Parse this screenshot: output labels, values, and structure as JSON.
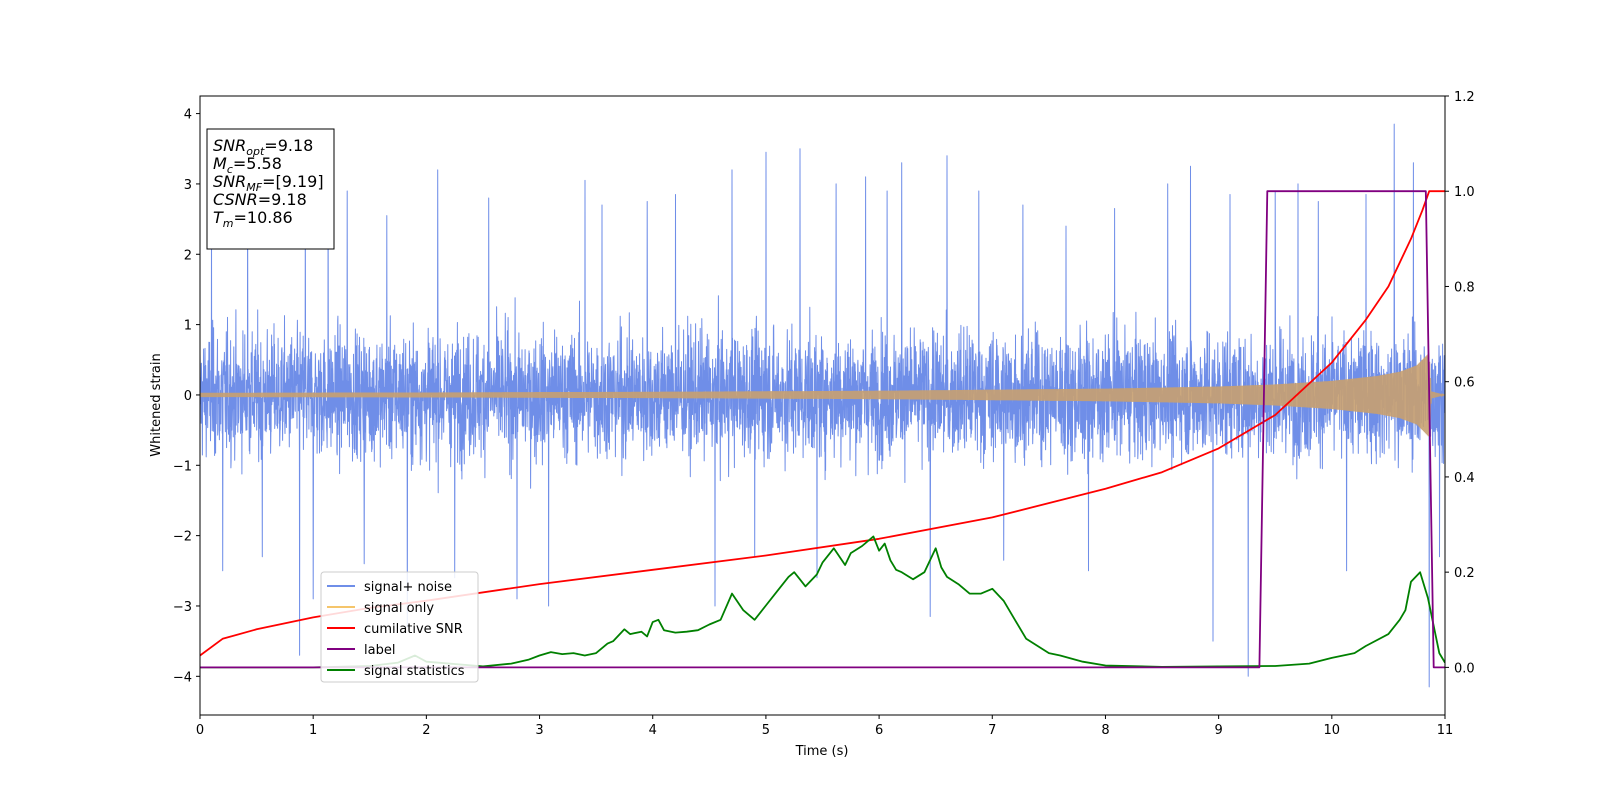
{
  "chart_data": {
    "type": "line",
    "title": "",
    "xlabel": "Time (s)",
    "ylabel": "Whitened strain",
    "xlim": [
      0,
      11
    ],
    "ylim": [
      -4.55,
      4.25
    ],
    "y2lim": [
      -0.1,
      1.2
    ],
    "x_ticks": [
      0,
      1,
      2,
      3,
      4,
      5,
      6,
      7,
      8,
      9,
      10,
      11
    ],
    "x_tick_labels": [
      "0",
      "1",
      "2",
      "3",
      "4",
      "5",
      "6",
      "7",
      "8",
      "9",
      "10",
      "11"
    ],
    "y_ticks": [
      -4,
      -3,
      -2,
      -1,
      0,
      1,
      2,
      3,
      4
    ],
    "y_tick_labels": [
      "−4",
      "−3",
      "−2",
      "−1",
      "0",
      "1",
      "2",
      "3",
      "4"
    ],
    "y2_ticks": [
      0.0,
      0.2,
      0.4,
      0.6,
      0.8,
      1.0,
      1.2
    ],
    "y2_tick_labels": [
      "0.0",
      "0.2",
      "0.4",
      "0.6",
      "0.8",
      "1.0",
      "1.2"
    ],
    "grid": false,
    "legend_position": "lower-left",
    "info_box": {
      "lines": [
        {
          "var": "SNR",
          "sub": "opt",
          "value": "=9.18"
        },
        {
          "var": "M",
          "sub": "c",
          "value": "=5.58"
        },
        {
          "var": "SNR",
          "sub": "MF",
          "value": "=[9.19]"
        },
        {
          "var": "CSNR",
          "sub": "",
          "value": "=9.18"
        },
        {
          "var": "T",
          "sub": "m",
          "value": "=10.86"
        }
      ]
    },
    "series": [
      {
        "name": "signal+ noise",
        "axis": "left",
        "color": "#6f8ee8",
        "description_values": "noise band approx -2.1 to 2.1, spikes up to 3.85",
        "envelope": {
          "x": [
            0,
            11
          ],
          "low": -1.6,
          "high": 1.6
        },
        "spikes": [
          [
            0.1,
            2.6
          ],
          [
            0.2,
            -2.5
          ],
          [
            0.42,
            2.9
          ],
          [
            0.55,
            -2.3
          ],
          [
            0.88,
            -3.7
          ],
          [
            0.93,
            2.7
          ],
          [
            1.0,
            -2.9
          ],
          [
            1.13,
            3.35
          ],
          [
            1.3,
            2.9
          ],
          [
            1.45,
            -2.4
          ],
          [
            1.65,
            2.55
          ],
          [
            1.83,
            -3.3
          ],
          [
            2.1,
            3.2
          ],
          [
            2.25,
            -2.6
          ],
          [
            2.55,
            2.8
          ],
          [
            2.8,
            -2.9
          ],
          [
            3.08,
            -3.0
          ],
          [
            3.4,
            3.05
          ],
          [
            3.55,
            2.7
          ],
          [
            3.95,
            2.75
          ],
          [
            4.2,
            2.85
          ],
          [
            4.55,
            -3.0
          ],
          [
            4.7,
            3.2
          ],
          [
            4.9,
            -2.3
          ],
          [
            5.0,
            3.45
          ],
          [
            5.3,
            3.5
          ],
          [
            5.45,
            -2.6
          ],
          [
            5.62,
            3.0
          ],
          [
            5.88,
            3.1
          ],
          [
            6.07,
            2.9
          ],
          [
            6.2,
            3.3
          ],
          [
            6.45,
            -3.15
          ],
          [
            6.6,
            3.4
          ],
          [
            6.88,
            2.9
          ],
          [
            7.1,
            -2.35
          ],
          [
            7.27,
            2.7
          ],
          [
            7.65,
            2.4
          ],
          [
            7.85,
            -2.5
          ],
          [
            8.08,
            2.65
          ],
          [
            8.55,
            3.0
          ],
          [
            8.75,
            3.25
          ],
          [
            8.95,
            -3.5
          ],
          [
            9.1,
            2.85
          ],
          [
            9.26,
            -4.0
          ],
          [
            9.5,
            2.9
          ],
          [
            9.7,
            3.0
          ],
          [
            9.88,
            2.75
          ],
          [
            10.13,
            -2.5
          ],
          [
            10.3,
            2.85
          ],
          [
            10.55,
            3.85
          ],
          [
            10.72,
            3.3
          ],
          [
            10.86,
            -4.15
          ],
          [
            10.95,
            -2.3
          ]
        ]
      },
      {
        "name": "signal only",
        "axis": "left",
        "color": "#f5c56b",
        "description_values": "chirp amplitude grows from ~0.03 to ~0.6 near merger at 10.86 s",
        "amplitude": {
          "x": [
            0,
            2,
            4,
            6,
            8,
            9,
            9.5,
            10,
            10.4,
            10.6,
            10.75,
            10.83,
            10.86,
            10.88,
            11
          ],
          "a": [
            0.03,
            0.035,
            0.045,
            0.06,
            0.09,
            0.12,
            0.15,
            0.2,
            0.27,
            0.33,
            0.42,
            0.55,
            0.6,
            0.05,
            0.0
          ]
        }
      },
      {
        "name": "cumilative SNR",
        "axis": "right",
        "color": "#ff0000",
        "x": [
          0,
          0.2,
          0.5,
          1,
          1.5,
          2,
          3,
          4,
          5,
          6,
          7,
          8,
          8.5,
          9,
          9.5,
          10,
          10.3,
          10.5,
          10.7,
          10.8,
          10.86,
          11
        ],
        "values": [
          0.025,
          0.06,
          0.08,
          0.105,
          0.125,
          0.14,
          0.175,
          0.205,
          0.235,
          0.27,
          0.315,
          0.375,
          0.41,
          0.46,
          0.53,
          0.64,
          0.73,
          0.8,
          0.9,
          0.96,
          1.0,
          1.0
        ]
      },
      {
        "name": "label",
        "axis": "right",
        "color": "#800080",
        "x": [
          0,
          9.36,
          9.43,
          10.83,
          10.9,
          11
        ],
        "values": [
          0.0,
          0.0,
          1.0,
          1.0,
          0.0,
          0.0
        ]
      },
      {
        "name": "signal statistics",
        "axis": "right",
        "color": "#008000",
        "x": [
          0,
          0.5,
          1,
          1.5,
          1.75,
          1.9,
          2.0,
          2.5,
          2.75,
          2.9,
          3.0,
          3.1,
          3.2,
          3.3,
          3.4,
          3.5,
          3.6,
          3.65,
          3.75,
          3.8,
          3.9,
          3.95,
          4.0,
          4.05,
          4.1,
          4.2,
          4.3,
          4.4,
          4.5,
          4.6,
          4.7,
          4.8,
          4.9,
          5.0,
          5.1,
          5.2,
          5.25,
          5.3,
          5.35,
          5.45,
          5.5,
          5.6,
          5.7,
          5.75,
          5.85,
          5.95,
          6.0,
          6.05,
          6.1,
          6.15,
          6.2,
          6.3,
          6.4,
          6.5,
          6.55,
          6.6,
          6.7,
          6.8,
          6.9,
          7.0,
          7.1,
          7.2,
          7.3,
          7.5,
          7.6,
          7.8,
          8.0,
          8.5,
          9.0,
          9.5,
          9.8,
          10.0,
          10.2,
          10.3,
          10.5,
          10.6,
          10.65,
          10.7,
          10.78,
          10.85,
          10.95,
          11.0
        ],
        "values": [
          0.0,
          0.0,
          0.0,
          0.003,
          0.01,
          0.025,
          0.012,
          0.002,
          0.008,
          0.016,
          0.025,
          0.032,
          0.028,
          0.03,
          0.025,
          0.03,
          0.05,
          0.055,
          0.08,
          0.07,
          0.075,
          0.065,
          0.095,
          0.1,
          0.078,
          0.073,
          0.075,
          0.078,
          0.09,
          0.1,
          0.155,
          0.12,
          0.1,
          0.13,
          0.16,
          0.19,
          0.2,
          0.185,
          0.17,
          0.195,
          0.22,
          0.25,
          0.215,
          0.24,
          0.255,
          0.275,
          0.245,
          0.26,
          0.225,
          0.205,
          0.2,
          0.185,
          0.2,
          0.25,
          0.21,
          0.19,
          0.175,
          0.155,
          0.155,
          0.165,
          0.14,
          0.1,
          0.06,
          0.03,
          0.025,
          0.012,
          0.004,
          0.001,
          0.002,
          0.003,
          0.008,
          0.02,
          0.03,
          0.045,
          0.07,
          0.1,
          0.12,
          0.18,
          0.2,
          0.145,
          0.03,
          0.01
        ]
      }
    ]
  }
}
